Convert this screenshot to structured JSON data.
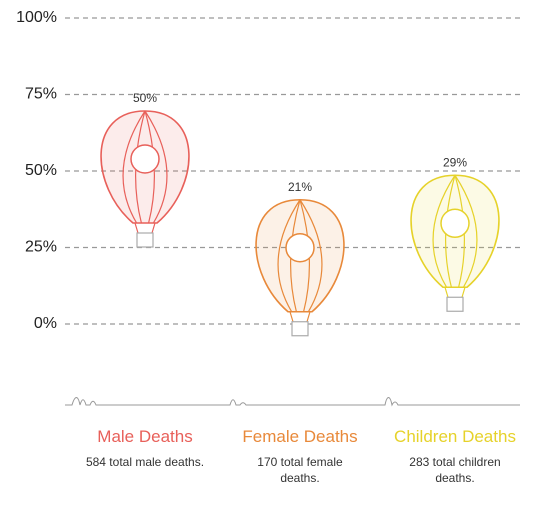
{
  "chart_data": {
    "type": "balloon",
    "categories": [
      "Male Deaths",
      "Female Deaths",
      "Children Deaths"
    ],
    "values": [
      50,
      21,
      29
    ],
    "value_labels": [
      "50%",
      "21%",
      "29%"
    ],
    "descriptions": [
      "584 total male deaths.",
      "170 total female deaths.",
      "283 total children deaths."
    ],
    "colors": [
      "#e8605a",
      "#e8893a",
      "#e6d22a"
    ],
    "ylim": [
      0,
      100
    ],
    "yticks": [
      {
        "value": 0,
        "label": "0%"
      },
      {
        "value": 25,
        "label": "25%"
      },
      {
        "value": 50,
        "label": "50%"
      },
      {
        "value": 75,
        "label": "75%"
      },
      {
        "value": 100,
        "label": "100%"
      }
    ],
    "grid": true
  }
}
